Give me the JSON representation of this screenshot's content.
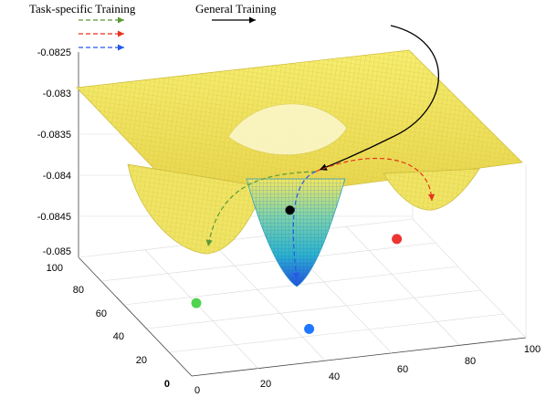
{
  "chart_data": {
    "type": "surface",
    "legend": {
      "task_specific_label": "Task-specific Training",
      "general_label": "General Training",
      "task_colors": [
        "#5a9a38",
        "#e8321e",
        "#2858e8"
      ],
      "general_color": "#000000"
    },
    "x_ticks": [
      "0",
      "20",
      "40",
      "60",
      "80",
      "100"
    ],
    "y_ticks": [
      "0",
      "20",
      "40",
      "60",
      "80",
      "100"
    ],
    "z_ticks": [
      "-0.0825",
      "-0.083",
      "-0.0835",
      "-0.084",
      "-0.0845",
      "-0.085"
    ],
    "xlim": [
      0,
      100
    ],
    "ylim": [
      0,
      100
    ],
    "zlim": [
      -0.085,
      -0.0825
    ],
    "surface_colormap": "parula (yellow plateau to blue minimum)",
    "grid": true,
    "points": [
      {
        "name": "general-training-end",
        "x": 48,
        "y": 55,
        "z": -0.084,
        "color": "#000000"
      },
      {
        "name": "task-minimum-green",
        "x": 20,
        "y": 55,
        "z": -0.085,
        "color": "#4fd44f"
      },
      {
        "name": "task-minimum-blue",
        "x": 48,
        "y": 38,
        "z": -0.0852,
        "color": "#1e78ff"
      },
      {
        "name": "task-minimum-red",
        "x": 80,
        "y": 55,
        "z": -0.0845,
        "color": "#ee3333"
      }
    ]
  }
}
